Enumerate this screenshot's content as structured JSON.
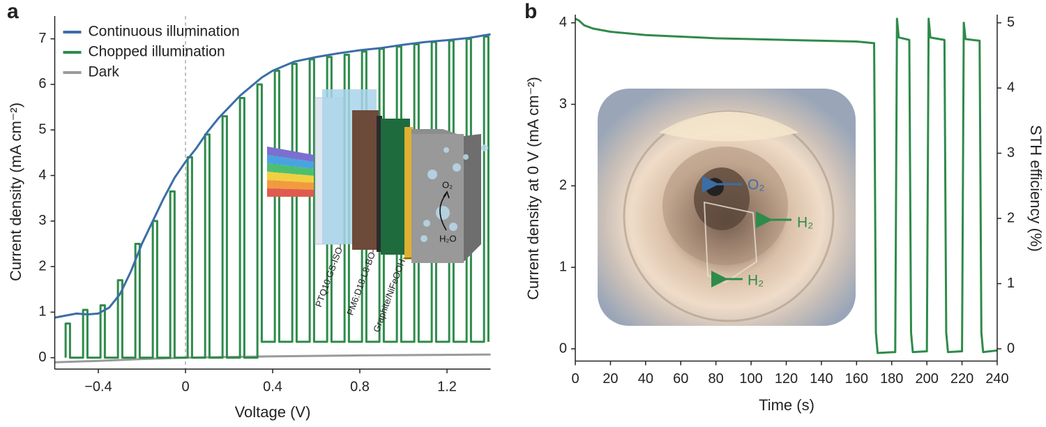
{
  "chart_data": [
    {
      "type": "line",
      "panel": "a",
      "xlabel": "Voltage (V)",
      "ylabel": "Current density (mA cm⁻²)",
      "xlim": [
        -0.6,
        1.4
      ],
      "ylim": [
        -0.25,
        7.5
      ],
      "xticks": [
        {
          "value": -0.4,
          "label": "−0.4"
        },
        0,
        0.4,
        0.8,
        1.2
      ],
      "yticks": [
        0,
        1,
        2,
        3,
        4,
        5,
        6,
        7
      ],
      "legend": "upper left",
      "annotations": [
        "PTQ10:GS-ISO",
        "PM6:D18:L8-BO",
        "Graphite/NiFeOOH",
        "O₂",
        "H₂O"
      ],
      "series": [
        {
          "name": "Continuous illumination",
          "color": "#3b6ea5",
          "x": [
            -0.6,
            -0.5,
            -0.45,
            -0.4,
            -0.35,
            -0.3,
            -0.25,
            -0.2,
            -0.15,
            -0.1,
            -0.05,
            0,
            0.05,
            0.1,
            0.15,
            0.2,
            0.25,
            0.3,
            0.35,
            0.4,
            0.5,
            0.6,
            0.7,
            0.8,
            0.9,
            1.0,
            1.1,
            1.2,
            1.3,
            1.4
          ],
          "values": [
            0.88,
            0.97,
            0.95,
            0.97,
            1.1,
            1.4,
            1.9,
            2.5,
            3.0,
            3.5,
            3.95,
            4.3,
            4.6,
            4.95,
            5.25,
            5.5,
            5.75,
            5.95,
            6.15,
            6.3,
            6.5,
            6.6,
            6.68,
            6.75,
            6.8,
            6.87,
            6.93,
            6.97,
            7.02,
            7.1
          ]
        },
        {
          "name": "Chopped illumination",
          "color": "#2e8b4a",
          "x": [
            -0.55,
            -0.55,
            -0.53,
            -0.53,
            -0.47,
            -0.47,
            -0.45,
            -0.45,
            -0.39,
            -0.39,
            -0.37,
            -0.37,
            -0.31,
            -0.31,
            -0.29,
            -0.29,
            -0.23,
            -0.23,
            -0.21,
            -0.21,
            -0.15,
            -0.15,
            -0.13,
            -0.13,
            -0.07,
            -0.07,
            -0.05,
            -0.05,
            0.01,
            0.01,
            0.03,
            0.03,
            0.09,
            0.09,
            0.11,
            0.11,
            0.17,
            0.17,
            0.19,
            0.19,
            0.25,
            0.25,
            0.27,
            0.27,
            0.33,
            0.33,
            0.35,
            0.35,
            0.41,
            0.41,
            0.43,
            0.43,
            0.49,
            0.49,
            0.51,
            0.51,
            0.57,
            0.57,
            0.59,
            0.59,
            0.65,
            0.65,
            0.67,
            0.67,
            0.73,
            0.73,
            0.75,
            0.75,
            0.81,
            0.81,
            0.83,
            0.83,
            0.89,
            0.89,
            0.91,
            0.91,
            0.97,
            0.97,
            0.99,
            0.99,
            1.05,
            1.05,
            1.07,
            1.07,
            1.13,
            1.13,
            1.15,
            1.15,
            1.21,
            1.21,
            1.23,
            1.23,
            1.29,
            1.29,
            1.31,
            1.31,
            1.37,
            1.37,
            1.39,
            1.39
          ],
          "values": [
            0,
            0.75,
            0.75,
            0,
            0,
            1.05,
            1.05,
            0,
            0,
            1.15,
            1.15,
            0,
            0,
            1.7,
            1.7,
            0,
            0,
            2.5,
            2.5,
            0,
            0,
            3.0,
            3.0,
            0,
            0,
            3.65,
            3.65,
            0,
            0,
            4.4,
            4.4,
            0,
            0,
            4.9,
            4.9,
            0,
            0,
            5.3,
            5.3,
            0,
            0,
            5.7,
            5.7,
            0,
            0,
            6.0,
            6.0,
            0.35,
            0.35,
            6.3,
            6.3,
            0.35,
            0.35,
            6.45,
            6.45,
            0.35,
            0.35,
            6.55,
            6.55,
            0.35,
            0.35,
            6.6,
            6.6,
            0.35,
            0.35,
            6.65,
            6.65,
            0.35,
            0.35,
            6.72,
            6.72,
            0.35,
            0.35,
            6.78,
            6.78,
            0.35,
            0.35,
            6.83,
            6.83,
            0.35,
            0.35,
            6.88,
            6.88,
            0.35,
            0.35,
            6.93,
            6.93,
            0.35,
            0.35,
            6.96,
            6.96,
            0.35,
            0.35,
            7.0,
            7.0,
            0.35,
            0.35,
            7.05,
            7.05,
            0.35
          ]
        },
        {
          "name": "Dark",
          "color": "#9a9a9a",
          "x": [
            -0.6,
            -0.4,
            -0.2,
            0,
            0.4,
            0.8,
            1.4
          ],
          "values": [
            -0.1,
            -0.07,
            -0.03,
            0,
            0.03,
            0.05,
            0.07
          ]
        }
      ]
    },
    {
      "type": "line",
      "panel": "b",
      "xlabel": "Time (s)",
      "ylabel": "Current density at 0 V (mA cm⁻²)",
      "y2label": "STH efficiency (%)",
      "xlim": [
        0,
        240
      ],
      "ylim": [
        -0.15,
        4.1
      ],
      "y2lim": [
        -0.1875,
        5.125
      ],
      "xticks": [
        0,
        20,
        40,
        60,
        80,
        100,
        120,
        140,
        160,
        180,
        200,
        220,
        240
      ],
      "yticks": [
        0,
        1,
        2,
        3,
        4
      ],
      "y2ticks": [
        0,
        1,
        2,
        3,
        4,
        5
      ],
      "annotations": [
        "O₂",
        "H₂",
        "H₂"
      ],
      "series": [
        {
          "color": "#2e8b4a",
          "x": [
            0,
            2,
            5,
            10,
            20,
            40,
            60,
            80,
            100,
            120,
            140,
            160,
            170,
            171,
            172,
            182,
            183,
            184,
            190,
            191,
            192,
            200,
            201,
            202,
            210,
            211,
            212,
            220,
            221,
            222,
            230,
            231,
            232,
            240
          ],
          "values": [
            4.05,
            4.03,
            3.97,
            3.93,
            3.89,
            3.85,
            3.83,
            3.81,
            3.8,
            3.79,
            3.78,
            3.77,
            3.75,
            0.2,
            -0.05,
            -0.04,
            4.05,
            3.82,
            3.79,
            0.2,
            -0.04,
            -0.03,
            4.05,
            3.82,
            3.79,
            0.2,
            -0.04,
            -0.03,
            4.0,
            3.8,
            3.78,
            0.2,
            -0.04,
            -0.02
          ]
        }
      ]
    }
  ]
}
